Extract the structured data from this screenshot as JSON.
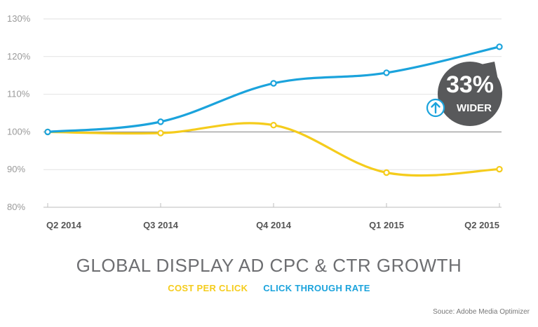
{
  "chart_data": {
    "type": "line",
    "title": "GLOBAL DISPLAY AD CPC & CTR GROWTH",
    "categories": [
      "Q2 2014",
      "Q3 2014",
      "Q4 2014",
      "Q1 2015",
      "Q2 2015"
    ],
    "ylim": [
      80,
      130
    ],
    "yticks": [
      80,
      90,
      100,
      110,
      120,
      130
    ],
    "ytick_labels": [
      "80%",
      "90%",
      "100%",
      "110%",
      "120%",
      "130%"
    ],
    "baseline": 100,
    "series": [
      {
        "name": "COST PER CLICK",
        "color": "#f5cc1c",
        "values": [
          100,
          99.7,
          101.8,
          89.2,
          90.1
        ]
      },
      {
        "name": "CLICK THROUGH RATE",
        "color": "#1ba3dc",
        "values": [
          100,
          102.7,
          112.9,
          115.7,
          122.6
        ]
      }
    ],
    "callout": {
      "value": "33%",
      "label": "WIDER",
      "color": "#58595b",
      "icon": "up-arrow-icon"
    },
    "source": "Souce: Adobe Media Optimizer"
  }
}
